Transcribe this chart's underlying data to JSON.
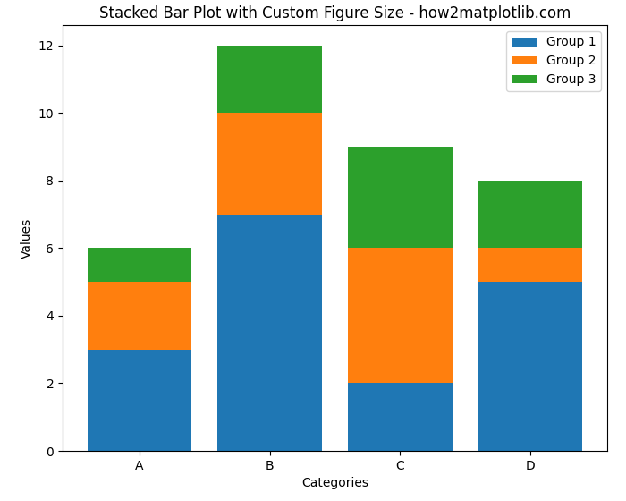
{
  "categories": [
    "A",
    "B",
    "C",
    "D"
  ],
  "group1": [
    3,
    7,
    2,
    5
  ],
  "group2": [
    2,
    3,
    4,
    1
  ],
  "group3": [
    1,
    2,
    3,
    2
  ],
  "colors": [
    "#1f77b4",
    "#ff7f0e",
    "#2ca02c"
  ],
  "legend_labels": [
    "Group 1",
    "Group 2",
    "Group 3"
  ],
  "title": "Stacked Bar Plot with Custom Figure Size - how2matplotlib.com",
  "xlabel": "Categories",
  "ylabel": "Values",
  "figsize": [
    7.0,
    5.6
  ],
  "dpi": 100,
  "bar_width": 0.8
}
